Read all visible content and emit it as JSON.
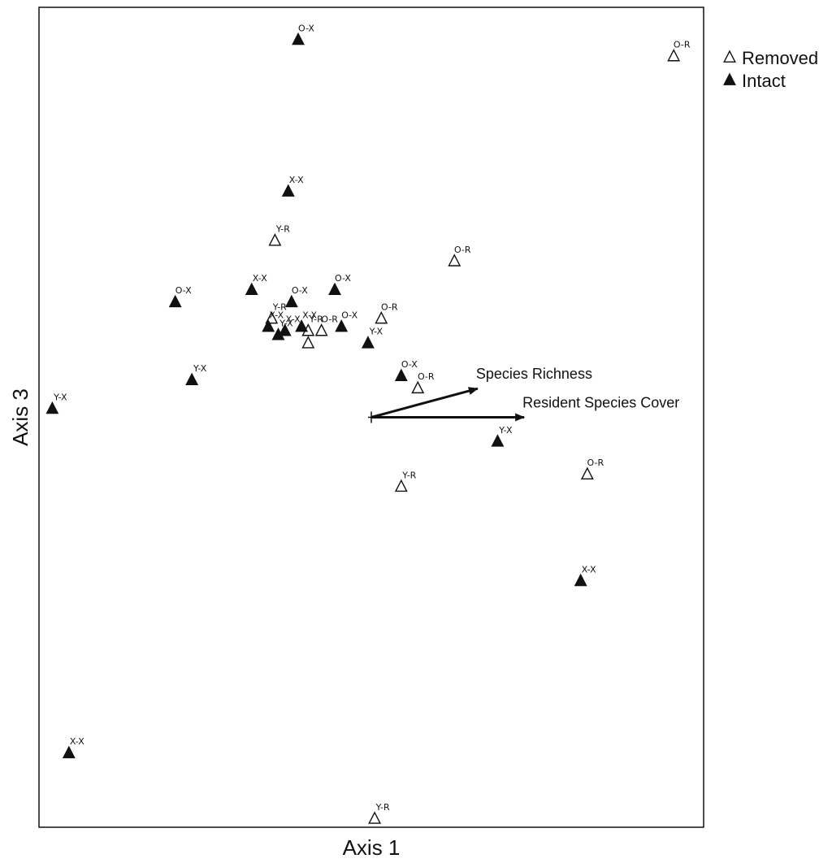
{
  "chart_data": {
    "type": "scatter",
    "title": "",
    "xlabel": "Axis 1",
    "ylabel": "Axis 3",
    "xlim": [
      -1.0,
      1.0
    ],
    "ylim": [
      -1.0,
      1.0
    ],
    "grid": false,
    "legend_position": "top-right",
    "legend": [
      {
        "name": "Removed",
        "marker": "open-triangle"
      },
      {
        "name": "Intact",
        "marker": "filled-triangle"
      }
    ],
    "series": [
      {
        "name": "Removed",
        "marker": "open-triangle",
        "points": [
          {
            "label": "O-R",
            "x": 0.91,
            "y": 0.88
          },
          {
            "label": "Y-R",
            "x": -0.29,
            "y": 0.43
          },
          {
            "label": "O-R",
            "x": 0.25,
            "y": 0.38
          },
          {
            "label": "Y-R",
            "x": -0.3,
            "y": 0.24
          },
          {
            "label": "Y-R",
            "x": -0.19,
            "y": 0.21
          },
          {
            "label": "O-R",
            "x": -0.15,
            "y": 0.21
          },
          {
            "label": "",
            "x": -0.19,
            "y": 0.18
          },
          {
            "label": "O-R",
            "x": 0.03,
            "y": 0.24
          },
          {
            "label": "O-R",
            "x": 0.14,
            "y": 0.07
          },
          {
            "label": "Y-R",
            "x": 0.09,
            "y": -0.17
          },
          {
            "label": "O-R",
            "x": 0.65,
            "y": -0.14
          },
          {
            "label": "Y-R",
            "x": 0.01,
            "y": -0.98
          }
        ]
      },
      {
        "name": "Intact",
        "marker": "filled-triangle",
        "points": [
          {
            "label": "O-X",
            "x": -0.22,
            "y": 0.92
          },
          {
            "label": "X-X",
            "x": -0.25,
            "y": 0.55
          },
          {
            "label": "X-X",
            "x": -0.36,
            "y": 0.31
          },
          {
            "label": "O-X",
            "x": -0.24,
            "y": 0.28
          },
          {
            "label": "O-X",
            "x": -0.11,
            "y": 0.31
          },
          {
            "label": "O-X",
            "x": -0.59,
            "y": 0.28
          },
          {
            "label": "X-X",
            "x": -0.31,
            "y": 0.22
          },
          {
            "label": "Y-X",
            "x": -0.28,
            "y": 0.2
          },
          {
            "label": "X-X",
            "x": -0.26,
            "y": 0.21
          },
          {
            "label": "X-X",
            "x": -0.21,
            "y": 0.22
          },
          {
            "label": "O-X",
            "x": -0.09,
            "y": 0.22
          },
          {
            "label": "Y-X",
            "x": -0.01,
            "y": 0.18
          },
          {
            "label": "Y-X",
            "x": -0.54,
            "y": 0.09
          },
          {
            "label": "Y-X",
            "x": -0.96,
            "y": 0.02
          },
          {
            "label": "O-X",
            "x": 0.09,
            "y": 0.1
          },
          {
            "label": "Y-X",
            "x": 0.38,
            "y": -0.06
          },
          {
            "label": "X-X",
            "x": 0.63,
            "y": -0.4
          },
          {
            "label": "X-X",
            "x": -0.91,
            "y": -0.82
          }
        ]
      }
    ],
    "vectors": [
      {
        "label": "Species Richness",
        "x0": 0.0,
        "y0": 0.0,
        "x1": 0.32,
        "y1": 0.07
      },
      {
        "label": "Resident Species Cover",
        "x0": 0.0,
        "y0": 0.0,
        "x1": 0.46,
        "y1": 0.0
      }
    ]
  }
}
